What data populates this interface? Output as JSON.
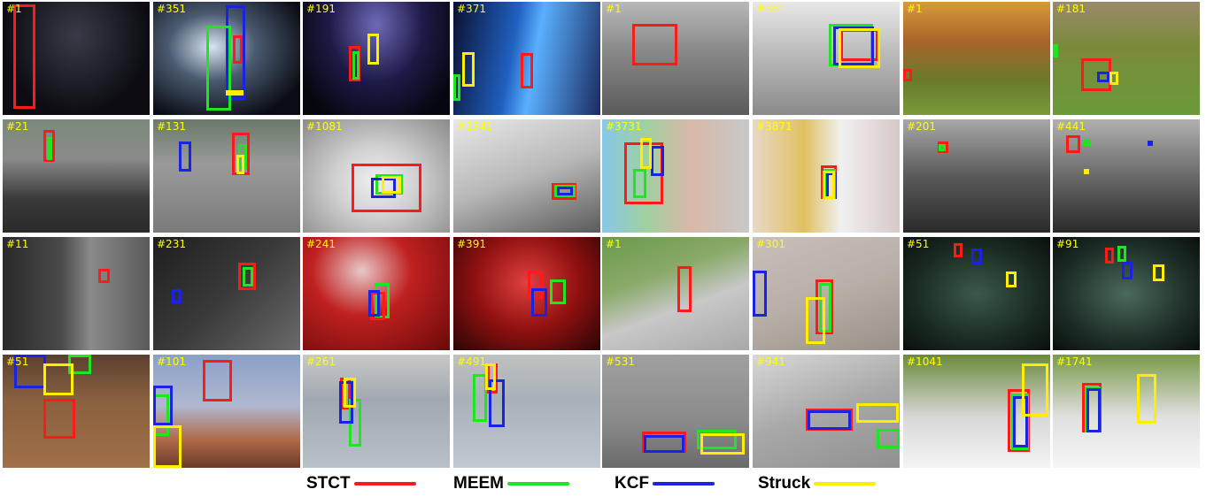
{
  "colors": {
    "STCT": "#ff1a1a",
    "MEEM": "#22e522",
    "KCF": "#1a24e0",
    "Struck": "#ffee00",
    "frame_label": "#ffff00"
  },
  "legend": [
    {
      "label": "STCT",
      "tracker": "STCT"
    },
    {
      "label": "MEEM",
      "tracker": "MEEM"
    },
    {
      "label": "KCF",
      "tracker": "KCF"
    },
    {
      "label": "Struck",
      "tracker": "Struck"
    }
  ],
  "frames": [
    {
      "label": "#1"
    },
    {
      "label": "#351"
    },
    {
      "label": "#191"
    },
    {
      "label": "#371"
    },
    {
      "label": "#1"
    },
    {
      "label": "#361"
    },
    {
      "label": "#1"
    },
    {
      "label": "#181"
    },
    {
      "label": "#21"
    },
    {
      "label": "#131"
    },
    {
      "label": "#1081"
    },
    {
      "label": "#1341"
    },
    {
      "label": "#3731"
    },
    {
      "label": "#3871"
    },
    {
      "label": "#201"
    },
    {
      "label": "#441"
    },
    {
      "label": "#11"
    },
    {
      "label": "#231"
    },
    {
      "label": "#241"
    },
    {
      "label": "#391"
    },
    {
      "label": "#1"
    },
    {
      "label": "#301"
    },
    {
      "label": "#51"
    },
    {
      "label": "#91"
    },
    {
      "label": "#51"
    },
    {
      "label": "#101"
    },
    {
      "label": "#261"
    },
    {
      "label": "#491"
    },
    {
      "label": "#531"
    },
    {
      "label": "#941"
    },
    {
      "label": "#1041"
    },
    {
      "label": "#1741"
    }
  ]
}
